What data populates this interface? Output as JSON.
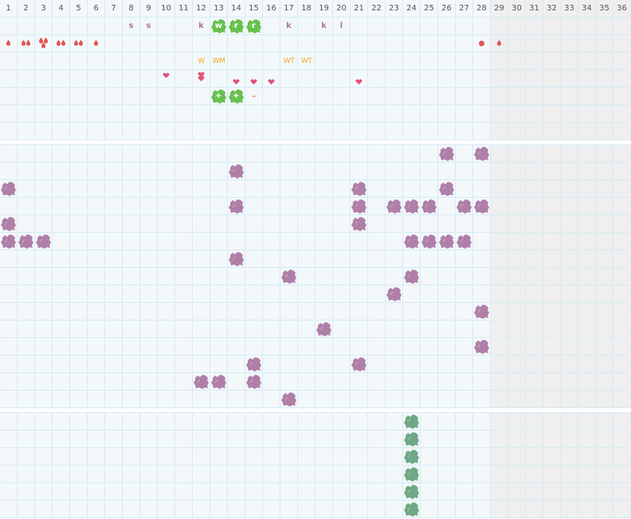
{
  "days": [
    "1",
    "2",
    "3",
    "4",
    "5",
    "6",
    "7",
    "8",
    "9",
    "10",
    "11",
    "12",
    "13",
    "14",
    "15",
    "16",
    "17",
    "18",
    "19",
    "20",
    "21",
    "22",
    "23",
    "24",
    "25",
    "26",
    "27",
    "28",
    "29",
    "30",
    "31",
    "32",
    "33",
    "34",
    "35",
    "36"
  ],
  "grey_from_day": 29,
  "colors": {
    "purple_blob": "#b07fa8",
    "green_blob": "#66c04e",
    "teal_blob": "#6fa886",
    "drop": "#e05555",
    "heart": "#e0507a",
    "orange_text": "#f5a623",
    "letter": "#a9789f"
  },
  "sections": [
    {
      "rows": 7,
      "marks": [
        {
          "day": 8,
          "row": 0,
          "type": "letter",
          "text": "s"
        },
        {
          "day": 9,
          "row": 0,
          "type": "letter",
          "text": "s"
        },
        {
          "day": 12,
          "row": 0,
          "type": "letter",
          "text": "k"
        },
        {
          "day": 13,
          "row": 0,
          "type": "green-blob",
          "text": "w"
        },
        {
          "day": 14,
          "row": 0,
          "type": "green-blob",
          "text": "r"
        },
        {
          "day": 15,
          "row": 0,
          "type": "green-blob",
          "text": "r"
        },
        {
          "day": 17,
          "row": 0,
          "type": "letter",
          "text": "k"
        },
        {
          "day": 19,
          "row": 0,
          "type": "letter",
          "text": "k"
        },
        {
          "day": 20,
          "row": 0,
          "type": "letter",
          "text": "l"
        },
        {
          "day": 1,
          "row": 1,
          "type": "drops",
          "count": 1
        },
        {
          "day": 2,
          "row": 1,
          "type": "drops",
          "count": 2
        },
        {
          "day": 3,
          "row": 1,
          "type": "drops",
          "count": 3
        },
        {
          "day": 4,
          "row": 1,
          "type": "drops",
          "count": 2
        },
        {
          "day": 5,
          "row": 1,
          "type": "drops",
          "count": 2
        },
        {
          "day": 6,
          "row": 1,
          "type": "drops",
          "count": 1
        },
        {
          "day": 28,
          "row": 1,
          "type": "dot"
        },
        {
          "day": 29,
          "row": 1,
          "type": "drops",
          "count": 1
        },
        {
          "day": 12,
          "row": 2,
          "type": "orange-text",
          "text": "W"
        },
        {
          "day": 13,
          "row": 2,
          "type": "orange-text",
          "text": "WM"
        },
        {
          "day": 17,
          "row": 2,
          "type": "orange-text",
          "text": "WT"
        },
        {
          "day": 18,
          "row": 2,
          "type": "orange-text",
          "text": "WT"
        },
        {
          "day": 10,
          "row": 3,
          "type": "hearts",
          "count": 1,
          "pos": "top"
        },
        {
          "day": 12,
          "row": 3,
          "type": "hearts",
          "count": 2
        },
        {
          "day": 14,
          "row": 3,
          "type": "hearts",
          "count": 1,
          "pos": "low"
        },
        {
          "day": 15,
          "row": 3,
          "type": "hearts",
          "count": 1,
          "pos": "low"
        },
        {
          "day": 16,
          "row": 3,
          "type": "hearts",
          "count": 1,
          "pos": "low"
        },
        {
          "day": 21,
          "row": 3,
          "type": "hearts",
          "count": 1,
          "pos": "low"
        },
        {
          "day": 13,
          "row": 4,
          "type": "green-blob",
          "text": "+"
        },
        {
          "day": 14,
          "row": 4,
          "type": "green-blob",
          "text": "+"
        },
        {
          "day": 15,
          "row": 4,
          "type": "minus",
          "text": "–"
        }
      ]
    },
    {
      "rows": 15,
      "marks": [
        {
          "day": 26,
          "row": 0,
          "type": "purple-blob"
        },
        {
          "day": 28,
          "row": 0,
          "type": "purple-blob"
        },
        {
          "day": 14,
          "row": 1,
          "type": "purple-blob"
        },
        {
          "day": 1,
          "row": 2,
          "type": "purple-blob"
        },
        {
          "day": 21,
          "row": 2,
          "type": "purple-blob"
        },
        {
          "day": 26,
          "row": 2,
          "type": "purple-blob"
        },
        {
          "day": 14,
          "row": 3,
          "type": "purple-blob"
        },
        {
          "day": 21,
          "row": 3,
          "type": "purple-blob"
        },
        {
          "day": 23,
          "row": 3,
          "type": "purple-blob"
        },
        {
          "day": 24,
          "row": 3,
          "type": "purple-blob"
        },
        {
          "day": 25,
          "row": 3,
          "type": "purple-blob"
        },
        {
          "day": 27,
          "row": 3,
          "type": "purple-blob"
        },
        {
          "day": 28,
          "row": 3,
          "type": "purple-blob"
        },
        {
          "day": 1,
          "row": 4,
          "type": "purple-blob"
        },
        {
          "day": 21,
          "row": 4,
          "type": "purple-blob"
        },
        {
          "day": 1,
          "row": 5,
          "type": "purple-blob"
        },
        {
          "day": 2,
          "row": 5,
          "type": "purple-blob"
        },
        {
          "day": 3,
          "row": 5,
          "type": "purple-blob"
        },
        {
          "day": 24,
          "row": 5,
          "type": "purple-blob"
        },
        {
          "day": 25,
          "row": 5,
          "type": "purple-blob"
        },
        {
          "day": 26,
          "row": 5,
          "type": "purple-blob"
        },
        {
          "day": 27,
          "row": 5,
          "type": "purple-blob"
        },
        {
          "day": 14,
          "row": 6,
          "type": "purple-blob"
        },
        {
          "day": 17,
          "row": 7,
          "type": "purple-blob"
        },
        {
          "day": 24,
          "row": 7,
          "type": "purple-blob"
        },
        {
          "day": 23,
          "row": 8,
          "type": "purple-blob"
        },
        {
          "day": 28,
          "row": 9,
          "type": "purple-blob"
        },
        {
          "day": 19,
          "row": 10,
          "type": "purple-blob"
        },
        {
          "day": 28,
          "row": 11,
          "type": "purple-blob"
        },
        {
          "day": 15,
          "row": 12,
          "type": "purple-blob"
        },
        {
          "day": 21,
          "row": 12,
          "type": "purple-blob"
        },
        {
          "day": 12,
          "row": 13,
          "type": "purple-blob"
        },
        {
          "day": 13,
          "row": 13,
          "type": "purple-blob"
        },
        {
          "day": 15,
          "row": 13,
          "type": "purple-blob"
        },
        {
          "day": 17,
          "row": 14,
          "type": "purple-blob"
        }
      ]
    },
    {
      "rows": 6,
      "marks": [
        {
          "day": 24,
          "row": 0,
          "type": "teal-blob"
        },
        {
          "day": 24,
          "row": 1,
          "type": "teal-blob"
        },
        {
          "day": 24,
          "row": 2,
          "type": "teal-blob"
        },
        {
          "day": 24,
          "row": 3,
          "type": "teal-blob"
        },
        {
          "day": 24,
          "row": 4,
          "type": "teal-blob"
        },
        {
          "day": 24,
          "row": 5,
          "type": "teal-blob"
        }
      ]
    }
  ]
}
